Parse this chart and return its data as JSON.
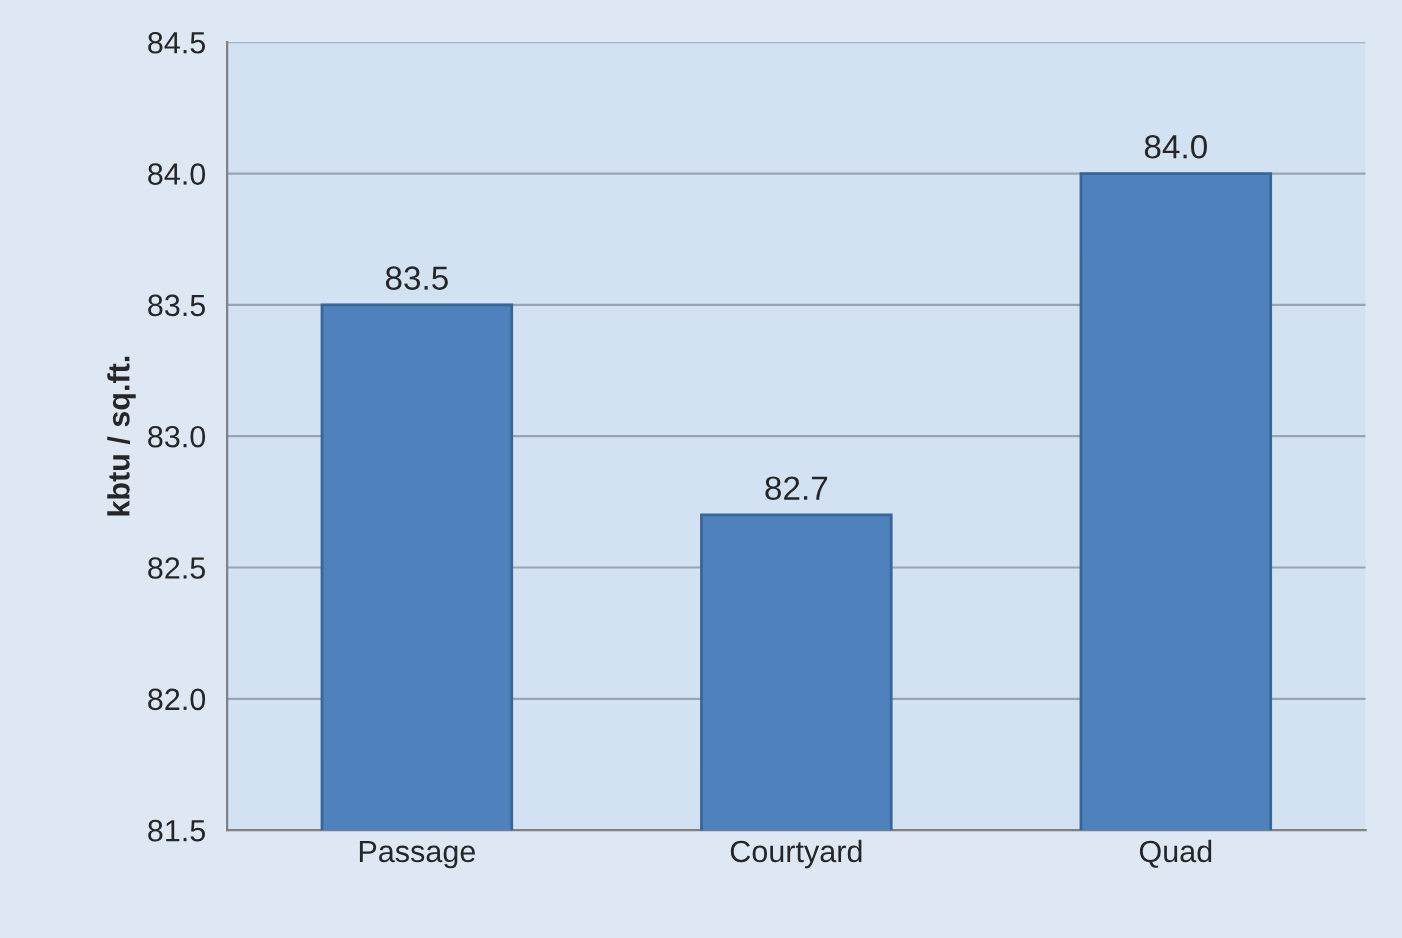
{
  "chart_data": {
    "type": "bar",
    "ylabel": "kbtu / sq.ft.",
    "categories": [
      "Passage",
      "Courtyard",
      "Quad"
    ],
    "values": [
      83.5,
      82.7,
      84
    ],
    "value_labels": [
      "83.5",
      "82.7",
      "84.0"
    ],
    "color": "#4f81bd",
    "ylim": [
      81.5,
      84.5
    ],
    "yticks": [
      81.5,
      {
        "value": 82,
        "label": "82.0"
      },
      82.5,
      {
        "value": 83,
        "label": "83.0"
      },
      83.5,
      {
        "value": 84,
        "label": "84.0"
      },
      84.5
    ],
    "grid": "y",
    "legend": false
  }
}
